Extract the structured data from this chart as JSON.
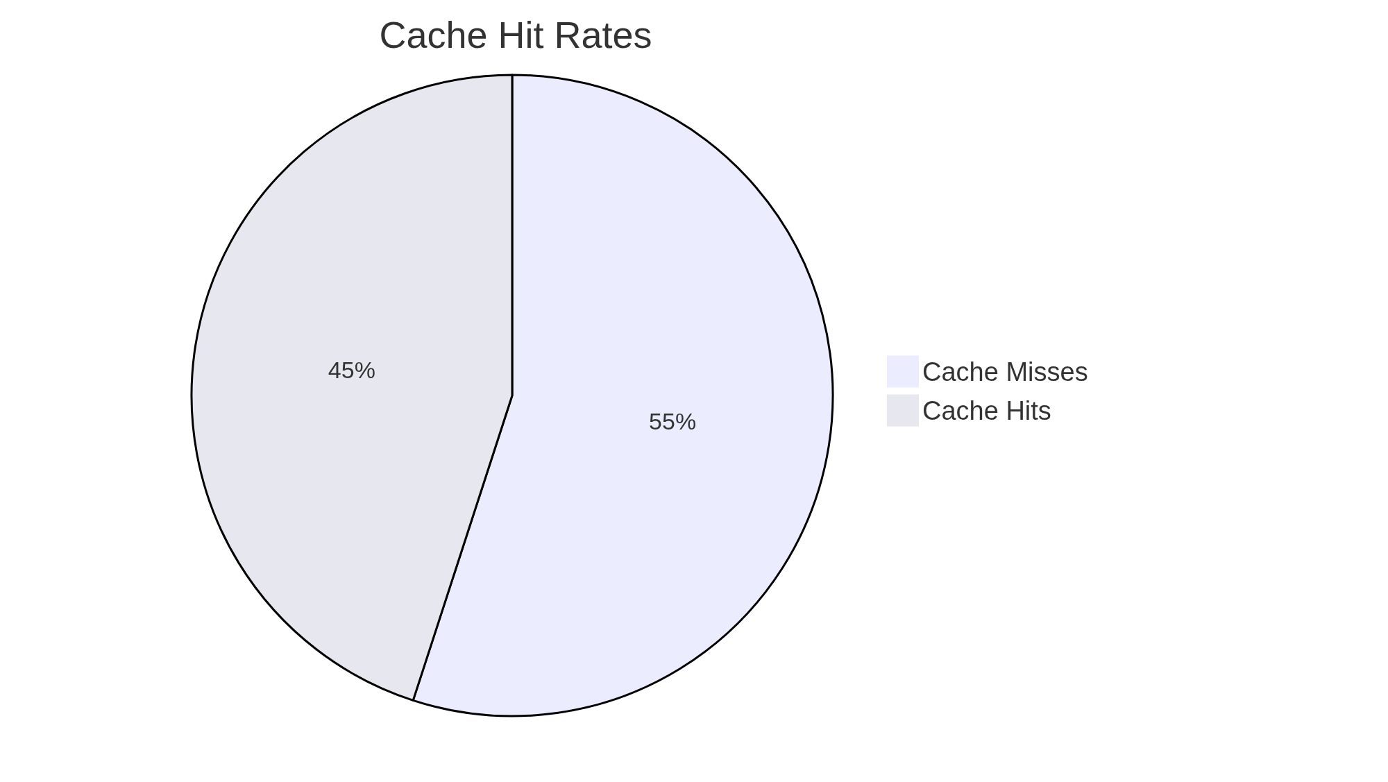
{
  "chart_data": {
    "type": "pie",
    "title": "Cache Hit Rates",
    "categories": [
      "Cache Misses",
      "Cache Hits"
    ],
    "values": [
      55,
      45
    ],
    "colors": [
      "#ececff",
      "#e7e7ef"
    ],
    "value_labels": [
      "55%",
      "45%"
    ],
    "legend": "right"
  }
}
